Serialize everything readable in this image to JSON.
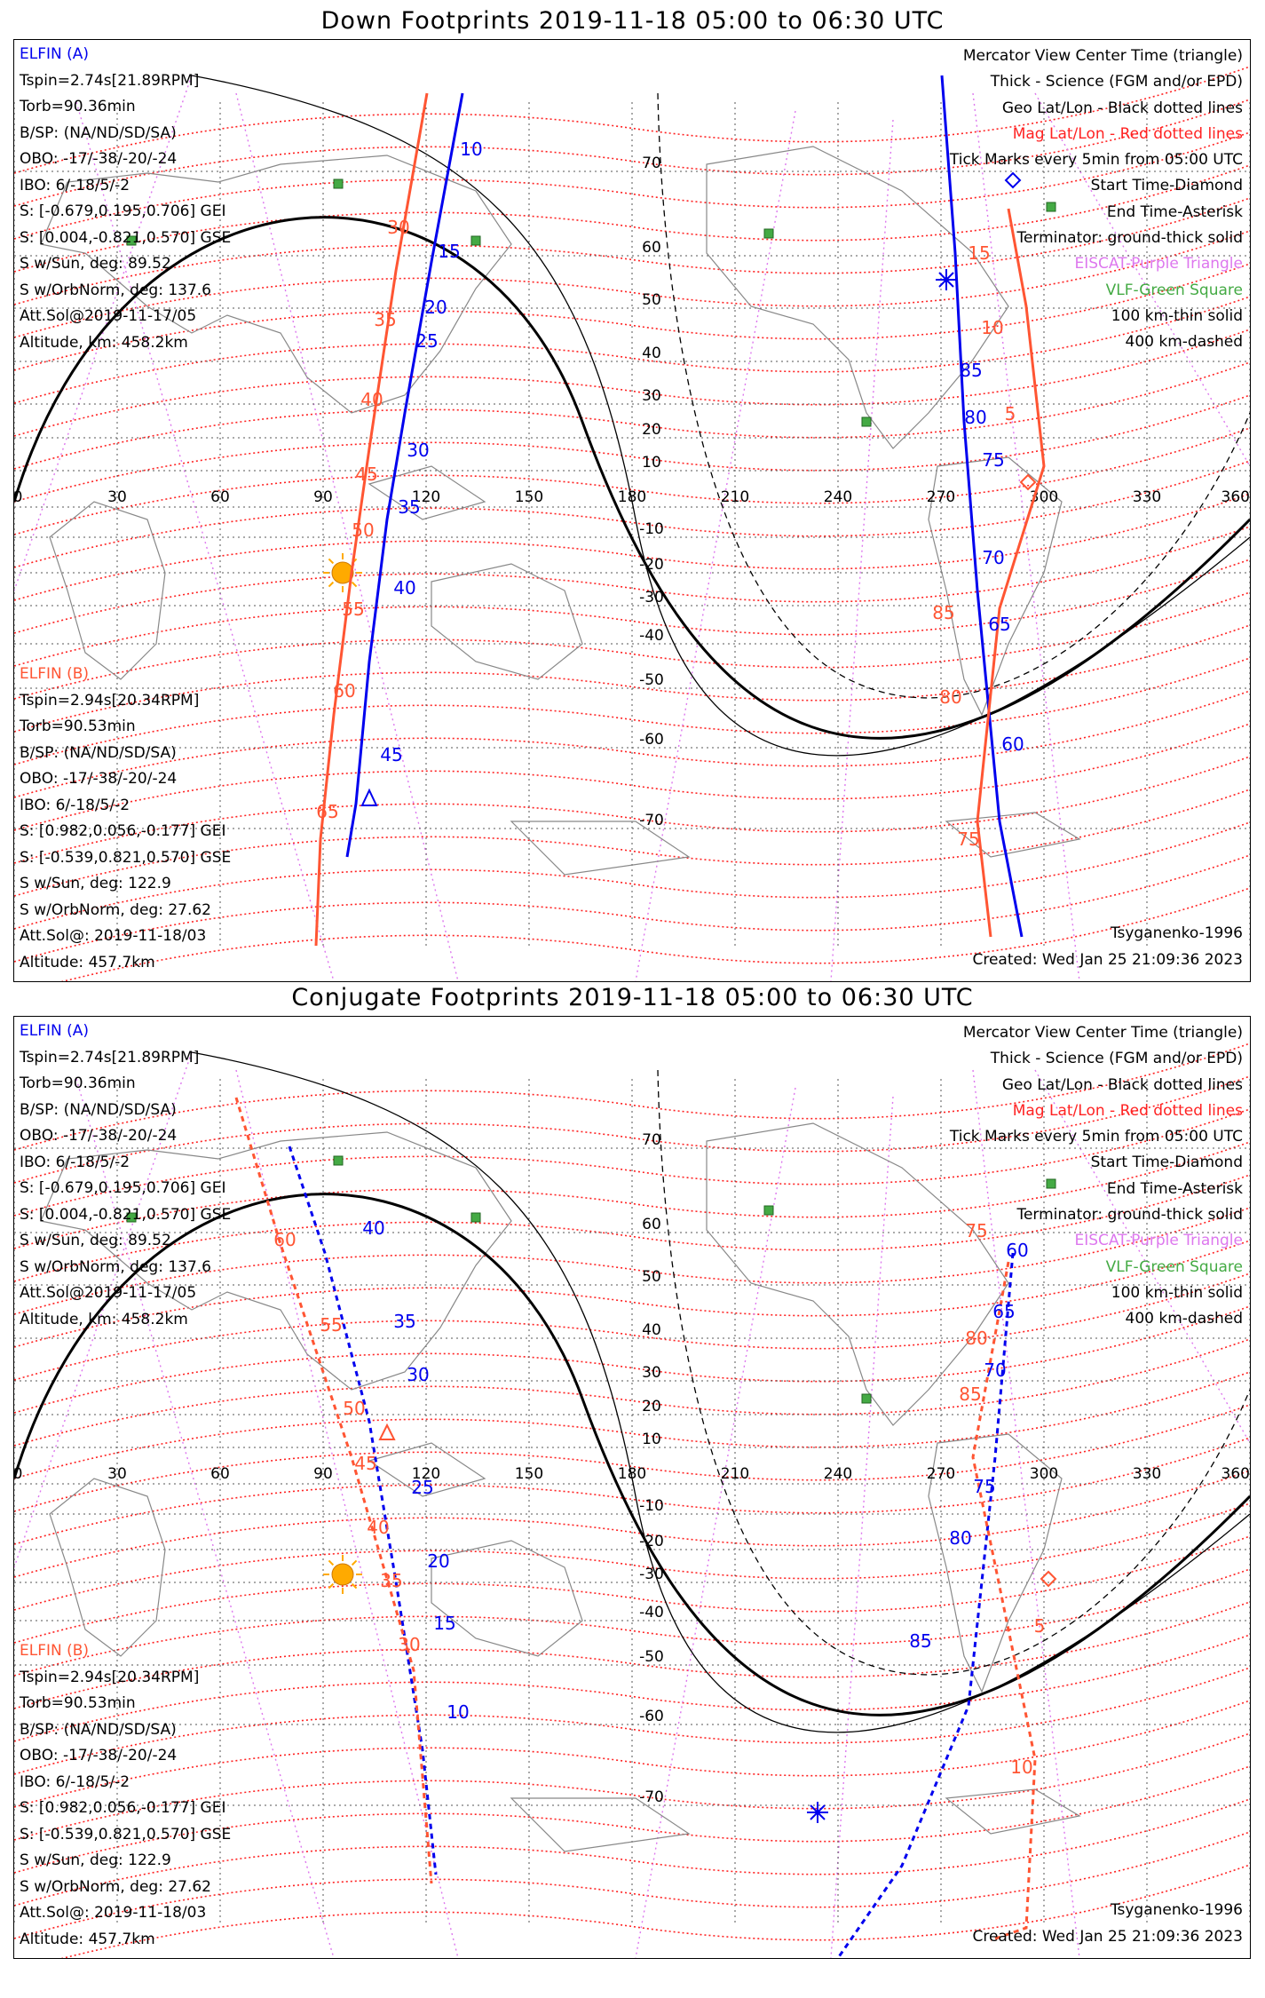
{
  "panels": [
    {
      "title": "Down Footprints 2019-11-18 05:00 to 06:30 UTC",
      "elfin_a": {
        "name": "ELFIN (A)",
        "lines": [
          "Tspin=2.74s[21.89RPM]",
          "Torb=90.36min",
          "B/SP: (NA/ND/SD/SA)",
          "OBO: -17/-38/-20/-24",
          "IBO: 6/-18/5/-2",
          "S: [-0.679,0.195,0.706] GEI",
          "S: [0.004,-0.821,0.570] GSE",
          "S w/Sun, deg: 89.52",
          "S w/OrbNorm, deg: 137.6",
          "Att.Sol@2019-11-17/05",
          "Altitude, km: 458.2km"
        ]
      },
      "elfin_b": {
        "name": "ELFIN (B)",
        "lines": [
          "Tspin=2.94s[20.34RPM]",
          "Torb=90.53min",
          "B/SP: (NA/ND/SD/SA)",
          "OBO: -17/-38/-20/-24",
          "IBO: 6/-18/5/-2",
          "S: [0.982,0.056,-0.177] GEI",
          "S: [-0.539,0.821,0.570] GSE",
          "S w/Sun, deg: 122.9",
          "S w/OrbNorm, deg: 27.62",
          "Att.Sol@: 2019-11-18/03",
          "Altitude: 457.7km"
        ]
      },
      "legend": [
        {
          "text": "Mercator View Center Time (triangle)",
          "color": "#000000"
        },
        {
          "text": "Thick - Science (FGM and/or EPD)",
          "color": "#000000"
        },
        {
          "text": "Geo Lat/Lon - Black dotted lines",
          "color": "#000000"
        },
        {
          "text": "Mag Lat/Lon - Red dotted lines",
          "color": "#ff2222"
        },
        {
          "text": "Tick Marks every 5min from 05:00 UTC",
          "color": "#000000"
        },
        {
          "text": "Start Time-Diamond",
          "color": "#000000"
        },
        {
          "text": "End Time-Asterisk",
          "color": "#000000"
        },
        {
          "text": "Terminator: ground-thick solid",
          "color": "#000000"
        },
        {
          "text": "EISCAT-Purple Triangle",
          "color": "#dd77ee"
        },
        {
          "text": "VLF-Green Square",
          "color": "#44aa44"
        },
        {
          "text": "100 km-thin solid",
          "color": "#000000"
        },
        {
          "text": "400 km-dashed",
          "color": "#000000"
        }
      ],
      "model": "Tsyganenko-1996",
      "created": "Created: Wed Jan 25 21:09:36 2023",
      "lon_labels": [
        "0",
        "30",
        "60",
        "90",
        "120",
        "150",
        "180",
        "210",
        "240",
        "270",
        "300",
        "330",
        "360"
      ],
      "lat_labels_north": [
        "70",
        "60",
        "50",
        "40",
        "30",
        "20",
        "10"
      ],
      "lat_labels_south": [
        "-10",
        "-20",
        "-30",
        "-40",
        "-50",
        "-60",
        "-70"
      ],
      "track_a_labels": [
        "10",
        "15",
        "20",
        "25",
        "30",
        "35",
        "40",
        "45"
      ],
      "track_a_east_labels": [
        "85",
        "80",
        "75",
        "70",
        "65",
        "60"
      ],
      "track_b_labels": [
        "30",
        "35",
        "40",
        "45",
        "50",
        "55",
        "60",
        "65"
      ],
      "track_b_east_labels": [
        "15",
        "10",
        "5",
        "85",
        "80",
        "75"
      ]
    },
    {
      "title": "Conjugate Footprints 2019-11-18 05:00 to 06:30 UTC",
      "elfin_a": {
        "name": "ELFIN (A)",
        "lines": [
          "Tspin=2.74s[21.89RPM]",
          "Torb=90.36min",
          "B/SP: (NA/ND/SD/SA)",
          "OBO: -17/-38/-20/-24",
          "IBO: 6/-18/5/-2",
          "S: [-0.679,0.195,0.706] GEI",
          "S: [0.004,-0.821,0.570] GSE",
          "S w/Sun, deg: 89.52",
          "S w/OrbNorm, deg: 137.6",
          "Att.Sol@2019-11-17/05",
          "Altitude, km: 458.2km"
        ]
      },
      "elfin_b": {
        "name": "ELFIN (B)",
        "lines": [
          "Tspin=2.94s[20.34RPM]",
          "Torb=90.53min",
          "B/SP: (NA/ND/SD/SA)",
          "OBO: -17/-38/-20/-24",
          "IBO: 6/-18/5/-2",
          "S: [0.982,0.056,-0.177] GEI",
          "S: [-0.539,0.821,0.570] GSE",
          "S w/Sun, deg: 122.9",
          "S w/OrbNorm, deg: 27.62",
          "Att.Sol@: 2019-11-18/03",
          "Altitude: 457.7km"
        ]
      },
      "legend": [
        {
          "text": "Mercator View Center Time (triangle)",
          "color": "#000000"
        },
        {
          "text": "Thick - Science (FGM and/or EPD)",
          "color": "#000000"
        },
        {
          "text": "Geo Lat/Lon - Black dotted lines",
          "color": "#000000"
        },
        {
          "text": "Mag Lat/Lon - Red dotted lines",
          "color": "#ff2222"
        },
        {
          "text": "Tick Marks every 5min from 05:00 UTC",
          "color": "#000000"
        },
        {
          "text": "Start Time-Diamond",
          "color": "#000000"
        },
        {
          "text": "End Time-Asterisk",
          "color": "#000000"
        },
        {
          "text": "Terminator: ground-thick solid",
          "color": "#000000"
        },
        {
          "text": "EISCAT-Purple Triangle",
          "color": "#dd77ee"
        },
        {
          "text": "VLF-Green Square",
          "color": "#44aa44"
        },
        {
          "text": "100 km-thin solid",
          "color": "#000000"
        },
        {
          "text": "400 km-dashed",
          "color": "#000000"
        }
      ],
      "model": "Tsyganenko-1996",
      "created": "Created: Wed Jan 25 21:09:36 2023",
      "lon_labels": [
        "0",
        "30",
        "60",
        "90",
        "120",
        "150",
        "180",
        "210",
        "240",
        "270",
        "300",
        "330",
        "360"
      ],
      "lat_labels_north": [
        "70",
        "60",
        "50",
        "40",
        "30",
        "20",
        "10"
      ],
      "lat_labels_south": [
        "-10",
        "-20",
        "-30",
        "-40",
        "-50",
        "-60",
        "-70"
      ],
      "track_a_labels": [
        "40",
        "35",
        "30",
        "25",
        "20",
        "15",
        "10"
      ],
      "track_a_east_labels": [
        "60",
        "65",
        "70",
        "75",
        "80",
        "85"
      ],
      "track_b_labels": [
        "60",
        "55",
        "50",
        "45",
        "40",
        "35",
        "30"
      ],
      "track_b_east_labels": [
        "75",
        "80",
        "85",
        "5",
        "10"
      ]
    }
  ],
  "colors": {
    "elfin_a": "#0000ee",
    "elfin_b": "#ff5533",
    "mag_grid": "#ff2222",
    "eiscat": "#dd77ee",
    "vlf": "#44aa44",
    "sun": "#ffaa00",
    "coast": "#888888"
  }
}
